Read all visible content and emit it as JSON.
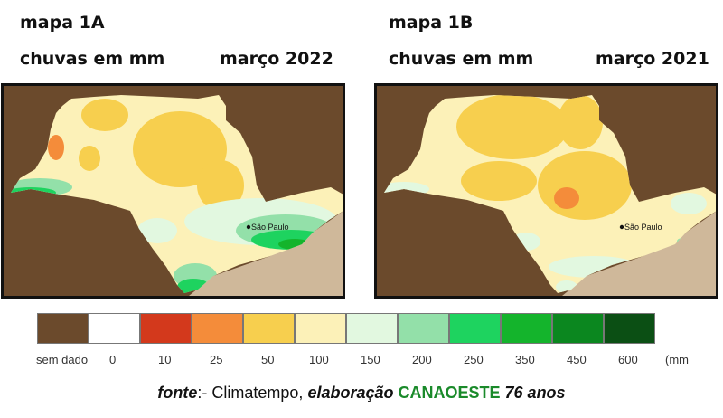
{
  "map_a": {
    "title": "mapa 1A",
    "subtitle": "chuvas em mm",
    "period": "março 2022",
    "city_label": "São Paulo"
  },
  "map_b": {
    "title": "mapa 1B",
    "subtitle": "chuvas em mm",
    "period": "março 2021",
    "city_label": "São Paulo"
  },
  "legend": {
    "unit": "(mm",
    "items": [
      {
        "label": "sem dado",
        "color": "#6b4a2c"
      },
      {
        "label": "0",
        "color": "#ffffff"
      },
      {
        "label": "10",
        "color": "#d3391c"
      },
      {
        "label": "25",
        "color": "#f48c3a"
      },
      {
        "label": "50",
        "color": "#f7cf4e"
      },
      {
        "label": "100",
        "color": "#fcf1b8"
      },
      {
        "label": "150",
        "color": "#e2f8e0"
      },
      {
        "label": "200",
        "color": "#93e0a9"
      },
      {
        "label": "250",
        "color": "#1ed35f"
      },
      {
        "label": "350",
        "color": "#14b42c"
      },
      {
        "label": "450",
        "color": "#0b871f"
      },
      {
        "label": "600",
        "color": "#0b4f14"
      }
    ]
  },
  "source": {
    "prefix": "fonte",
    "middle": ":- Climatempo, ",
    "elab": "elaboração",
    "org": "CANAOESTE",
    "years": "76 anos"
  }
}
